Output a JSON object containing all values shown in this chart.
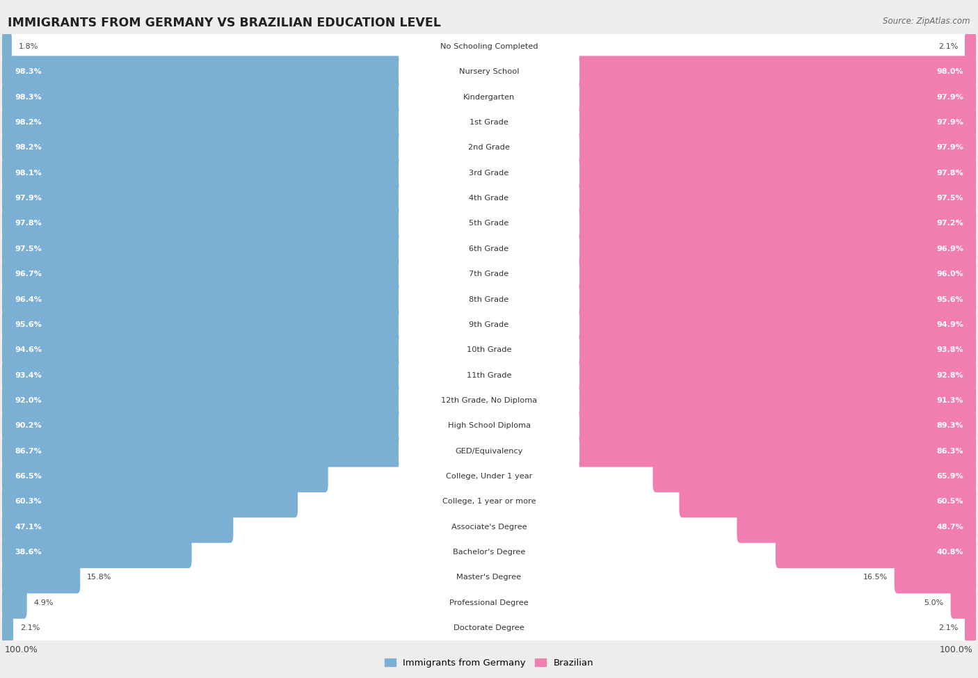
{
  "title": "IMMIGRANTS FROM GERMANY VS BRAZILIAN EDUCATION LEVEL",
  "source": "Source: ZipAtlas.com",
  "categories": [
    "No Schooling Completed",
    "Nursery School",
    "Kindergarten",
    "1st Grade",
    "2nd Grade",
    "3rd Grade",
    "4th Grade",
    "5th Grade",
    "6th Grade",
    "7th Grade",
    "8th Grade",
    "9th Grade",
    "10th Grade",
    "11th Grade",
    "12th Grade, No Diploma",
    "High School Diploma",
    "GED/Equivalency",
    "College, Under 1 year",
    "College, 1 year or more",
    "Associate's Degree",
    "Bachelor's Degree",
    "Master's Degree",
    "Professional Degree",
    "Doctorate Degree"
  ],
  "germany_values": [
    1.8,
    98.3,
    98.3,
    98.2,
    98.2,
    98.1,
    97.9,
    97.8,
    97.5,
    96.7,
    96.4,
    95.6,
    94.6,
    93.4,
    92.0,
    90.2,
    86.7,
    66.5,
    60.3,
    47.1,
    38.6,
    15.8,
    4.9,
    2.1
  ],
  "brazil_values": [
    2.1,
    98.0,
    97.9,
    97.9,
    97.9,
    97.8,
    97.5,
    97.2,
    96.9,
    96.0,
    95.6,
    94.9,
    93.8,
    92.8,
    91.3,
    89.3,
    86.3,
    65.9,
    60.5,
    48.7,
    40.8,
    16.5,
    5.0,
    2.1
  ],
  "germany_color": "#7BAFD4",
  "brazil_color": "#F07EB0",
  "background_color": "#EEEEEE",
  "row_bg_color": "#FFFFFF",
  "legend_germany": "Immigrants from Germany",
  "legend_brazil": "Brazilian"
}
